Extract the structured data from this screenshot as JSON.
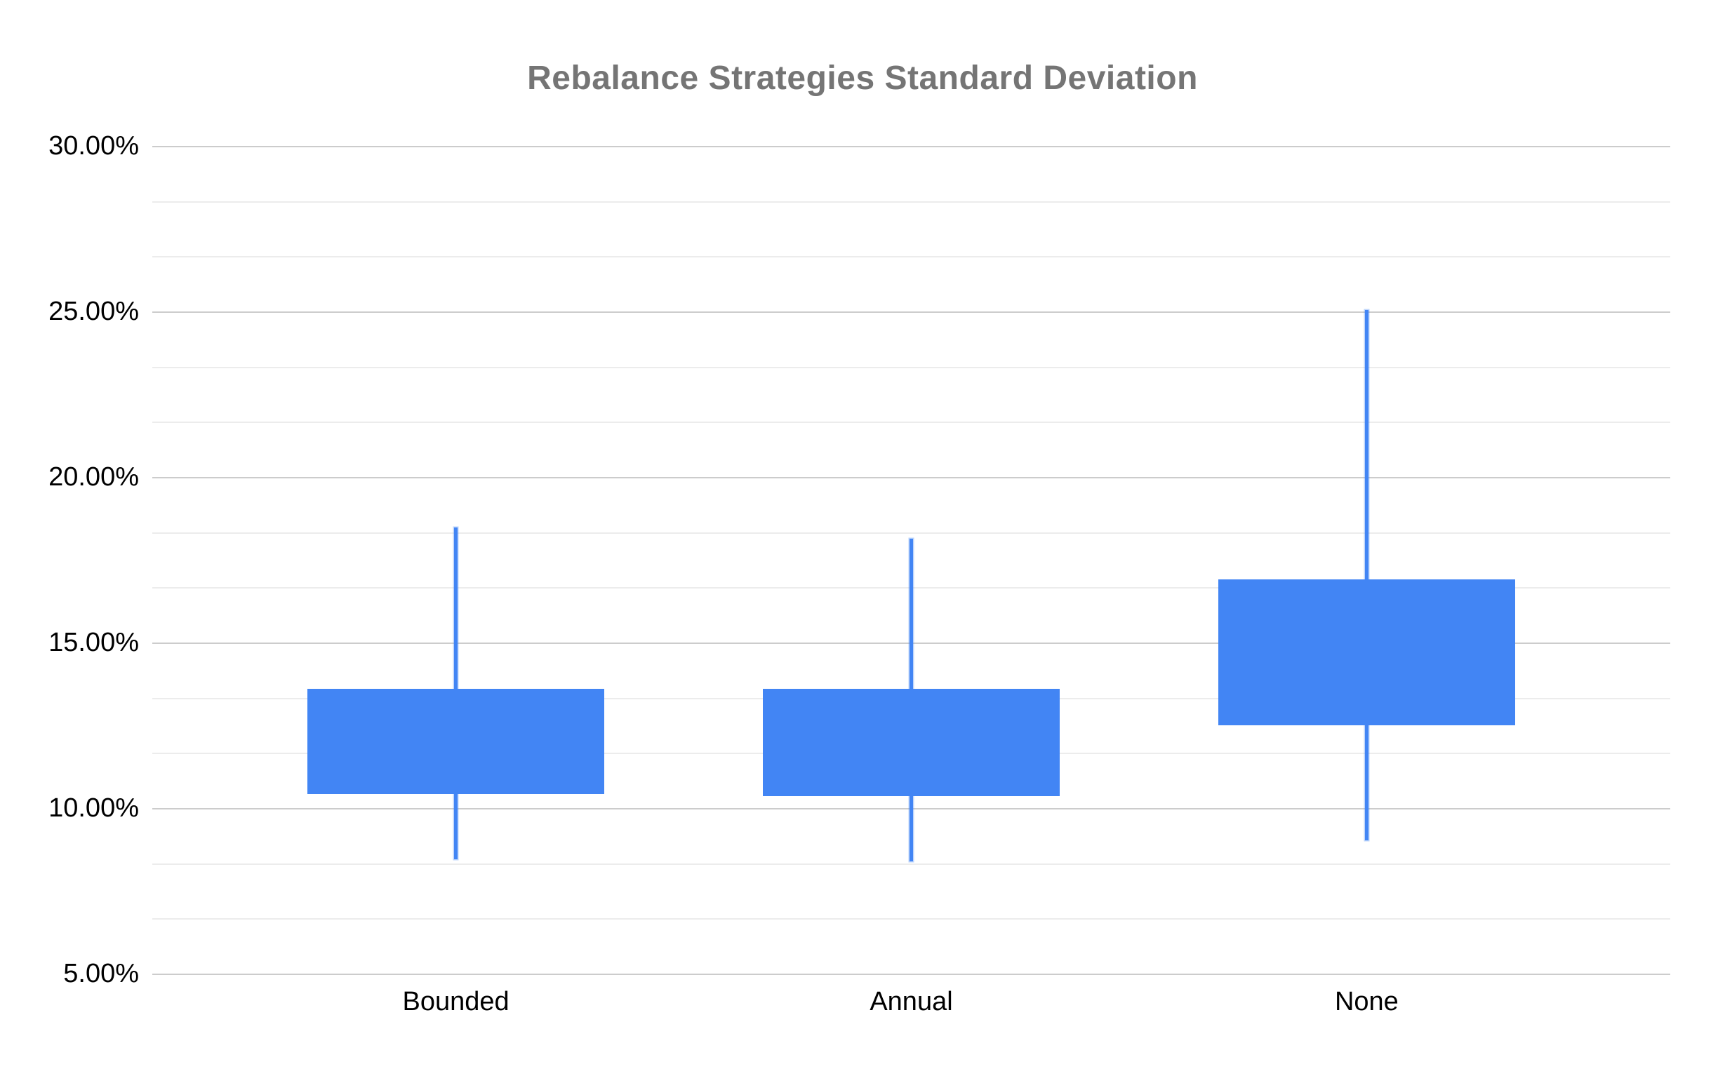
{
  "chart_data": {
    "type": "candlestick",
    "title": "Rebalance Strategies Standard Deviation",
    "categories": [
      "Bounded",
      "Annual",
      "None"
    ],
    "series": [
      {
        "name": "Standard Deviation",
        "values": [
          {
            "category": "Bounded",
            "low": 8.45,
            "open": 10.42,
            "close": 13.61,
            "high": 18.48
          },
          {
            "category": "Annual",
            "low": 8.38,
            "open": 10.35,
            "close": 13.6,
            "high": 18.14
          },
          {
            "category": "None",
            "low": 9.03,
            "open": 12.51,
            "close": 16.91,
            "high": 25.04
          }
        ]
      }
    ],
    "xlabel": "",
    "ylabel": "",
    "ylim": [
      5,
      30
    ],
    "y_major_step": 5,
    "y_minor_divisions": 3,
    "y_ticks": [
      {
        "value": 30,
        "label": "30.00%"
      },
      {
        "value": 25,
        "label": "25.00%"
      },
      {
        "value": 20,
        "label": "20.00%"
      },
      {
        "value": 15,
        "label": "15.00%"
      },
      {
        "value": 10,
        "label": "10.00%"
      },
      {
        "value": 5,
        "label": "5.00%"
      }
    ],
    "grid": true,
    "legend": "none",
    "value_format": "percent"
  },
  "colors": {
    "series": "#4285F4",
    "title_text": "#757575",
    "axis_text": "#000000",
    "grid_major": "#cccccc",
    "grid_minor": "#ececec",
    "background": "#ffffff"
  }
}
